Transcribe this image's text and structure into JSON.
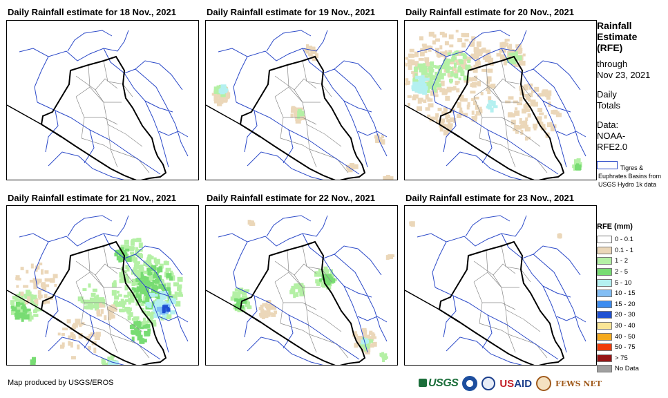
{
  "panels": [
    {
      "title": "Daily Rainfall estimate for 18 Nov., 2021"
    },
    {
      "title": "Daily Rainfall estimate for 19 Nov., 2021"
    },
    {
      "title": "Daily Rainfall estimate for 20 Nov., 2021"
    },
    {
      "title": "Daily Rainfall estimate for 21 Nov., 2021"
    },
    {
      "title": "Daily Rainfall estimate for 22 Nov., 2021"
    },
    {
      "title": "Daily Rainfall estimate for 23 Nov., 2021"
    }
  ],
  "side": {
    "title_line1": "Rainfall",
    "title_line2": "Estimate",
    "title_line3": "(RFE)",
    "through": "through",
    "date": "Nov 23, 2021",
    "totals_line1": "Daily",
    "totals_line2": "Totals",
    "data_line1": "Data:",
    "data_line2": "NOAA-",
    "data_line3": "RFE2.0",
    "basin_note": "Tigres & Euphrates Basins from USGS Hydro 1k data"
  },
  "legend": {
    "title": "RFE (mm)",
    "items": [
      {
        "label": "0 - 0.1",
        "color": "#ffffff"
      },
      {
        "label": "0.1 - 1",
        "color": "#ebd7b9"
      },
      {
        "label": "1 - 2",
        "color": "#b4f0a5"
      },
      {
        "label": "2 - 5",
        "color": "#78dc73"
      },
      {
        "label": "5 - 10",
        "color": "#b4f0f0"
      },
      {
        "label": "10 - 15",
        "color": "#82bef5"
      },
      {
        "label": "15 - 20",
        "color": "#3c8cf0"
      },
      {
        "label": "20 - 30",
        "color": "#1e50d2"
      },
      {
        "label": "30 - 40",
        "color": "#fae696"
      },
      {
        "label": "40 - 50",
        "color": "#f5aa1e"
      },
      {
        "label": "50 - 75",
        "color": "#f03c0a"
      },
      {
        "label": "> 75",
        "color": "#961414"
      },
      {
        "label": "No Data",
        "color": "#a0a0a0"
      }
    ]
  },
  "footer": {
    "credit": "Map produced by USGS/EROS"
  },
  "logos": {
    "usgs": "USGS",
    "usaid_a": "US",
    "usaid_b": "AID",
    "fews": "FEWS NET"
  }
}
